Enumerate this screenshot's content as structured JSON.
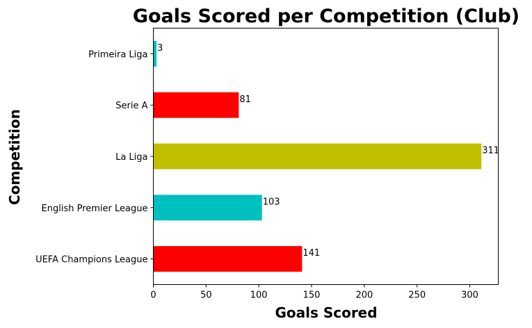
{
  "chart_data": {
    "type": "bar",
    "orientation": "horizontal",
    "title": "Goals Scored per Competition (Club)",
    "xlabel": "Goals Scored",
    "ylabel": "Competition",
    "categories": [
      "UEFA Champions League",
      "English Premier League",
      "La Liga",
      "Serie A",
      "Primeira Liga"
    ],
    "values": [
      141,
      103,
      311,
      81,
      3
    ],
    "data_labels": [
      "141",
      "103",
      "311",
      "81",
      "3"
    ],
    "colors": [
      "#ff0000",
      "#00bfbf",
      "#bfbf00",
      "#ff0000",
      "#00bfbf"
    ],
    "xlim": [
      0,
      327
    ],
    "xticks": [
      0,
      50,
      100,
      150,
      200,
      250,
      300
    ],
    "xtick_labels": [
      "0",
      "50",
      "100",
      "150",
      "200",
      "250",
      "300"
    ],
    "grid": false,
    "legend": "none"
  }
}
